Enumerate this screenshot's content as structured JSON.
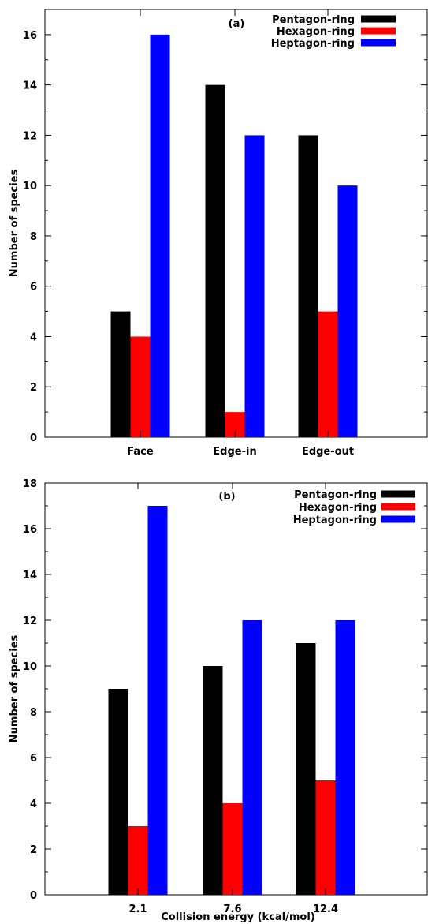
{
  "chart_data": [
    {
      "type": "bar",
      "panel_label": "(a)",
      "categories": [
        "Face",
        "Edge-in",
        "Edge-out"
      ],
      "series": [
        {
          "name": "Pentagon-ring",
          "color": "#000000",
          "values": [
            5,
            14,
            12
          ]
        },
        {
          "name": "Hexagon-ring",
          "color": "#ff0000",
          "values": [
            4,
            1,
            5
          ]
        },
        {
          "name": "Heptagon-ring",
          "color": "#0000ff",
          "values": [
            16,
            12,
            10
          ]
        }
      ],
      "xlabel": "",
      "ylabel": "Number of species",
      "ylim": [
        0,
        17
      ],
      "yticks": [
        0,
        2,
        4,
        6,
        8,
        10,
        12,
        14,
        16
      ],
      "grid": false,
      "legend_position": "top-right"
    },
    {
      "type": "bar",
      "panel_label": "(b)",
      "categories": [
        "2.1",
        "7.6",
        "12.4"
      ],
      "series": [
        {
          "name": "Pentagon-ring",
          "color": "#000000",
          "values": [
            9,
            10,
            11
          ]
        },
        {
          "name": "Hexagon-ring",
          "color": "#ff0000",
          "values": [
            3,
            4,
            5
          ]
        },
        {
          "name": "Heptagon-ring",
          "color": "#0000ff",
          "values": [
            17,
            12,
            12
          ]
        }
      ],
      "xlabel": "Collision energy (kcal/mol)",
      "ylabel": "Number of species",
      "ylim": [
        0,
        18
      ],
      "yticks": [
        0,
        2,
        4,
        6,
        8,
        10,
        12,
        14,
        16,
        18
      ],
      "grid": false,
      "legend_position": "top-right"
    }
  ]
}
